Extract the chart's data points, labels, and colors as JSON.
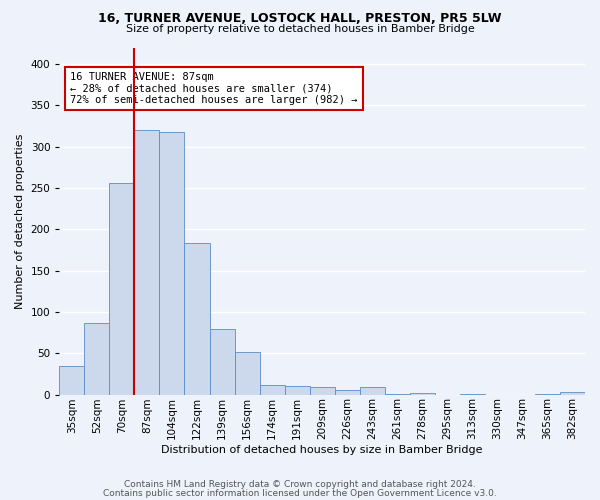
{
  "title1": "16, TURNER AVENUE, LOSTOCK HALL, PRESTON, PR5 5LW",
  "title2": "Size of property relative to detached houses in Bamber Bridge",
  "xlabel": "Distribution of detached houses by size in Bamber Bridge",
  "ylabel": "Number of detached properties",
  "categories": [
    "35sqm",
    "52sqm",
    "70sqm",
    "87sqm",
    "104sqm",
    "122sqm",
    "139sqm",
    "156sqm",
    "174sqm",
    "191sqm",
    "209sqm",
    "226sqm",
    "243sqm",
    "261sqm",
    "278sqm",
    "295sqm",
    "313sqm",
    "330sqm",
    "347sqm",
    "365sqm",
    "382sqm"
  ],
  "values": [
    35,
    87,
    256,
    320,
    318,
    183,
    79,
    52,
    12,
    10,
    9,
    5,
    9,
    1,
    2,
    0,
    1,
    0,
    0,
    1,
    3
  ],
  "bar_color": "#ccd9ec",
  "bar_edge_color": "#5b8cc8",
  "vline_x_index": 3,
  "vline_color": "#cc0000",
  "annotation_text": "16 TURNER AVENUE: 87sqm\n← 28% of detached houses are smaller (374)\n72% of semi-detached houses are larger (982) →",
  "annotation_box_color": "#cc0000",
  "ylim": [
    0,
    420
  ],
  "yticks": [
    0,
    50,
    100,
    150,
    200,
    250,
    300,
    350,
    400
  ],
  "footer1": "Contains HM Land Registry data © Crown copyright and database right 2024.",
  "footer2": "Contains public sector information licensed under the Open Government Licence v3.0.",
  "bg_color": "#eef2fa",
  "axes_bg_color": "#eef2fa",
  "grid_color": "#ffffff",
  "title1_fontsize": 9,
  "title2_fontsize": 8,
  "xlabel_fontsize": 8,
  "ylabel_fontsize": 8,
  "tick_fontsize": 7.5,
  "footer_fontsize": 6.5
}
